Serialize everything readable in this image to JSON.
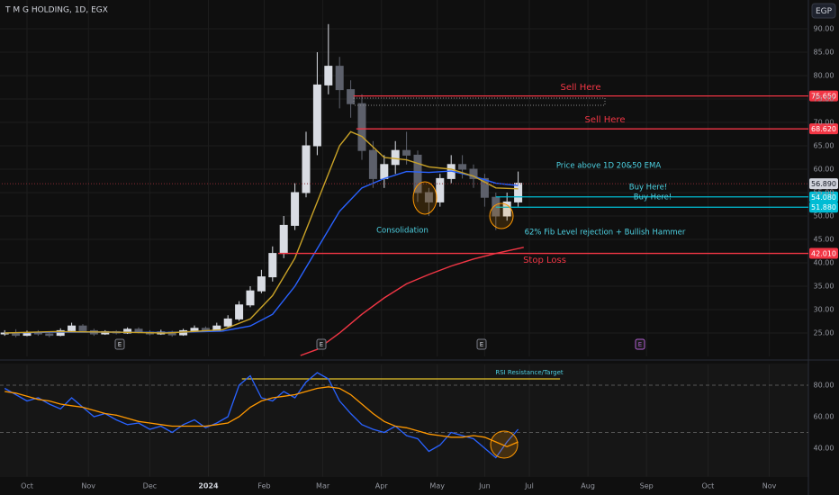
{
  "chart_data": [
    {
      "type": "candlestick",
      "title": "T M G HOLDING, 1D, EGX",
      "currency": "EGP",
      "up_color": "#d9dce3",
      "down_color": "#5d606b",
      "x": [
        -8,
        -4,
        0,
        4,
        8,
        12,
        16,
        20,
        24,
        28,
        32,
        36,
        40,
        44,
        48,
        52,
        56,
        60,
        64,
        68,
        72,
        76,
        80,
        84,
        88,
        92,
        96,
        100,
        104,
        108,
        112,
        116,
        120,
        124,
        128,
        132,
        136,
        140,
        144,
        148,
        152,
        156,
        160,
        164,
        168,
        172,
        176
      ],
      "open": [
        24.8,
        25,
        24.5,
        25,
        24.8,
        24.5,
        25.5,
        26.5,
        25.5,
        24.8,
        25.3,
        25,
        25.8,
        25.2,
        24.8,
        25.2,
        24.6,
        25.5,
        26,
        25.5,
        26.5,
        28,
        31,
        34,
        37,
        42,
        48,
        55,
        65,
        78,
        82,
        77,
        74,
        64,
        58,
        61,
        64,
        63,
        55,
        53,
        58,
        61,
        60,
        58,
        54,
        50,
        53
      ],
      "high": [
        25.6,
        25.8,
        25.5,
        25.6,
        25.3,
        26,
        27.2,
        26.9,
        25.9,
        25.6,
        25.6,
        26.2,
        26.2,
        25.6,
        25.7,
        25.5,
        25.9,
        26.6,
        26.4,
        27.2,
        28.8,
        31.8,
        35,
        38.5,
        43.5,
        50,
        57,
        68,
        85,
        91,
        84,
        79,
        76,
        66,
        63,
        66,
        68,
        64,
        56,
        59,
        63,
        63,
        61,
        59,
        55,
        55,
        59.5
      ],
      "low": [
        24.4,
        24.1,
        24.3,
        24.4,
        24.1,
        24.3,
        25.2,
        25.1,
        24.4,
        24.6,
        24.7,
        24.8,
        24.9,
        24.5,
        24.6,
        24.2,
        24.4,
        25.4,
        25.2,
        25.3,
        26.2,
        27.6,
        30.5,
        33.5,
        36,
        41,
        47,
        54,
        63,
        76,
        73,
        71,
        62,
        56,
        56,
        59,
        61,
        53,
        50,
        52,
        57,
        58,
        56,
        52,
        47,
        49,
        52
      ],
      "close": [
        25,
        24.5,
        25,
        24.8,
        24.5,
        25.5,
        26.5,
        25.5,
        24.8,
        25.3,
        25,
        25.8,
        25.2,
        24.8,
        25.2,
        24.6,
        25.5,
        26,
        25.5,
        26.5,
        28,
        31,
        34,
        37,
        42,
        48,
        55,
        65,
        78,
        82,
        77,
        74,
        64,
        58,
        61,
        64,
        63,
        55,
        53,
        58,
        61,
        60,
        58,
        54,
        50,
        53,
        57
      ],
      "overlays": [
        {
          "color": "#2962ff",
          "x": [
            -8,
            10,
            30,
            50,
            70,
            80,
            88,
            96,
            104,
            112,
            120,
            128,
            136,
            144,
            152,
            160,
            168,
            176
          ],
          "values": [
            25,
            25.2,
            25.2,
            25.1,
            25.4,
            26.5,
            29,
            35,
            43,
            51,
            56,
            58,
            59.5,
            59.3,
            59.6,
            58.5,
            57,
            56.5
          ]
        },
        {
          "color": "#c9a227",
          "x": [
            -8,
            10,
            30,
            50,
            70,
            80,
            88,
            96,
            104,
            112,
            116,
            120,
            128,
            136,
            144,
            152,
            160,
            168,
            176
          ],
          "values": [
            25,
            25.3,
            25.2,
            25,
            25.7,
            28,
            33,
            41,
            53,
            65,
            68,
            67,
            62.5,
            62,
            60.5,
            60,
            58.5,
            56,
            55.8
          ]
        },
        {
          "color": "#f23645",
          "x": [
            98,
            104,
            112,
            120,
            128,
            136,
            144,
            152,
            160,
            168,
            178
          ],
          "values": [
            20.2,
            21.5,
            25,
            29,
            32.5,
            35.5,
            37.5,
            39.3,
            40.8,
            42,
            43.3
          ]
        }
      ],
      "levels": [
        {
          "value": 75.65,
          "label": "75.650",
          "color": "#f23645",
          "start": 117
        },
        {
          "value": 68.62,
          "label": "68.620",
          "color": "#f23645",
          "start": 118
        },
        {
          "value": 56.89,
          "label": "56.890",
          "color": "#d1d4dc",
          "start": -10
        },
        {
          "value": 54.08,
          "label": "54.080",
          "color": "#00bcd4",
          "start": 168
        },
        {
          "value": 51.88,
          "label": "51.880",
          "color": "#00bcd4",
          "start": 168
        },
        {
          "value": 42.01,
          "label": "42.010",
          "color": "#f23645",
          "start": 90
        }
      ],
      "annotations": [
        {
          "text": "Sell Here",
          "color": "#f23645"
        },
        {
          "text": "Sell Here",
          "color": "#f23645"
        },
        {
          "text": "Price above 1D 20&50 EMA",
          "color": "#4dd0e1"
        },
        {
          "text": "Buy Here!",
          "color": "#4dd0e1"
        },
        {
          "text": "Buy Here!",
          "color": "#4dd0e1"
        },
        {
          "text": "Consolidation",
          "color": "#4dd0e1"
        },
        {
          "text": "62% Fib Level rejection + Bullish Hammer",
          "color": "#4dd0e1"
        },
        {
          "text": "Stop Loss",
          "color": "#f23645"
        }
      ],
      "xlim": [
        -10,
        280
      ],
      "ylim": [
        20,
        92
      ],
      "yticks": [
        {
          "value": 25,
          "label": "25.00"
        },
        {
          "value": 30,
          "label": "30.00"
        },
        {
          "value": 35,
          "label": "35.00"
        },
        {
          "value": 40,
          "label": "40.00"
        },
        {
          "value": 45,
          "label": "45.00"
        },
        {
          "value": 50,
          "label": "50.00"
        },
        {
          "value": 55,
          "label": "55.00"
        },
        {
          "value": 60,
          "label": "60.00"
        },
        {
          "value": 65,
          "label": "65.00"
        },
        {
          "value": 70,
          "label": "70.00"
        },
        {
          "value": 75,
          "label": "75.00"
        },
        {
          "value": 80,
          "label": "80.00"
        },
        {
          "value": 85,
          "label": "85.00"
        },
        {
          "value": 90,
          "label": "90.00"
        }
      ],
      "grid": true
    },
    {
      "type": "line",
      "x": [
        -8,
        -4,
        0,
        4,
        8,
        12,
        16,
        20,
        24,
        28,
        32,
        36,
        40,
        44,
        48,
        52,
        56,
        60,
        64,
        68,
        72,
        76,
        80,
        84,
        88,
        92,
        96,
        100,
        104,
        108,
        112,
        116,
        120,
        124,
        128,
        132,
        136,
        140,
        144,
        148,
        152,
        156,
        160,
        164,
        168,
        172,
        176
      ],
      "series": [
        {
          "color": "#2962ff",
          "values": [
            78,
            74,
            70,
            72,
            68,
            65,
            72,
            66,
            60,
            62,
            58,
            55,
            56,
            52,
            54,
            50,
            55,
            58,
            53,
            56,
            60,
            80,
            86,
            72,
            70,
            76,
            72,
            82,
            88,
            84,
            70,
            62,
            55,
            52,
            50,
            54,
            48,
            46,
            38,
            42,
            50,
            48,
            46,
            40,
            34,
            44,
            52
          ]
        },
        {
          "color": "#ff9800",
          "values": [
            76,
            75,
            73,
            71,
            70,
            68,
            67,
            66,
            64,
            62,
            61,
            59,
            57,
            56,
            55,
            54,
            54,
            54,
            54,
            55,
            56,
            60,
            66,
            70,
            72,
            73,
            74,
            76,
            78,
            79,
            78,
            74,
            68,
            62,
            57,
            54,
            53,
            51,
            49,
            48,
            47,
            47,
            48,
            47,
            44,
            41,
            44
          ]
        }
      ],
      "bands": [
        80,
        50
      ],
      "resistance": {
        "label": "RSI Resistance/Target",
        "value": 84,
        "start": 77,
        "end": 191,
        "color": "#e6c229"
      },
      "xlim": [
        -10,
        280
      ],
      "ylim": [
        22,
        93
      ],
      "yticks": [
        {
          "value": 40,
          "label": "40.00"
        },
        {
          "value": 60,
          "label": "60.00"
        },
        {
          "value": 80,
          "label": "80.00"
        }
      ],
      "xticks": [
        {
          "value": 0,
          "label": "Oct"
        },
        {
          "value": 22,
          "label": "Nov"
        },
        {
          "value": 44,
          "label": "Dec"
        },
        {
          "value": 65,
          "label": "2024"
        },
        {
          "value": 85,
          "label": "Feb"
        },
        {
          "value": 106,
          "label": "Mar"
        },
        {
          "value": 127,
          "label": "Apr"
        },
        {
          "value": 147,
          "label": "May"
        },
        {
          "value": 164,
          "label": "Jun"
        },
        {
          "value": 180,
          "label": "Jul"
        },
        {
          "value": 201,
          "label": "Aug"
        },
        {
          "value": 222,
          "label": "Sep"
        },
        {
          "value": 244,
          "label": "Oct"
        },
        {
          "value": 266,
          "label": "Nov"
        }
      ],
      "grid": true
    }
  ]
}
